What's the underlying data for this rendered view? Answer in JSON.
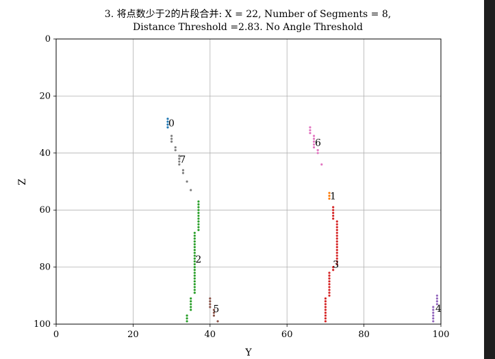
{
  "chart_data": {
    "type": "scatter",
    "title_lines": [
      "3. 将点数少于2的片段合并: X = 22, Number of Segments = 8,",
      "Distance Threshold =2.83. No Angle Threshold"
    ],
    "xlabel": "Y",
    "ylabel": "Z",
    "xlim": [
      0,
      100
    ],
    "ylim": [
      0,
      100
    ],
    "y_inverted": true,
    "grid": true,
    "xticks": [
      0,
      20,
      40,
      60,
      80,
      100
    ],
    "yticks": [
      0,
      20,
      40,
      60,
      80,
      100
    ],
    "series": [
      {
        "label": "0",
        "color": "#1f77b4",
        "points": [
          [
            29,
            28
          ],
          [
            29,
            29
          ],
          [
            29,
            30
          ],
          [
            29,
            31
          ]
        ]
      },
      {
        "label": "1",
        "color": "#ff7f0e",
        "points": [
          [
            71,
            54
          ],
          [
            71,
            55
          ],
          [
            71,
            56
          ]
        ]
      },
      {
        "label": "2",
        "color": "#2ca02c",
        "points": [
          [
            37,
            57
          ],
          [
            37,
            58
          ],
          [
            37,
            59
          ],
          [
            37,
            60
          ],
          [
            37,
            61
          ],
          [
            37,
            62
          ],
          [
            37,
            63
          ],
          [
            37,
            64
          ],
          [
            37,
            65
          ],
          [
            37,
            66
          ],
          [
            37,
            67
          ],
          [
            36,
            68
          ],
          [
            36,
            69
          ],
          [
            36,
            70
          ],
          [
            36,
            71
          ],
          [
            36,
            72
          ],
          [
            36,
            73
          ],
          [
            36,
            74
          ],
          [
            36,
            75
          ],
          [
            36,
            76
          ],
          [
            36,
            77
          ],
          [
            36,
            78
          ],
          [
            36,
            79
          ],
          [
            36,
            80
          ],
          [
            36,
            81
          ],
          [
            36,
            82
          ],
          [
            36,
            83
          ],
          [
            36,
            84
          ],
          [
            36,
            85
          ],
          [
            36,
            86
          ],
          [
            36,
            87
          ],
          [
            36,
            88
          ],
          [
            36,
            89
          ],
          [
            35,
            91
          ],
          [
            35,
            92
          ],
          [
            35,
            93
          ],
          [
            35,
            94
          ],
          [
            35,
            95
          ],
          [
            34,
            97
          ],
          [
            34,
            98
          ],
          [
            34,
            99
          ]
        ]
      },
      {
        "label": "3",
        "color": "#d62728",
        "points": [
          [
            72,
            59
          ],
          [
            72,
            60
          ],
          [
            72,
            61
          ],
          [
            72,
            62
          ],
          [
            72,
            63
          ],
          [
            73,
            64
          ],
          [
            73,
            65
          ],
          [
            73,
            66
          ],
          [
            73,
            67
          ],
          [
            73,
            68
          ],
          [
            73,
            69
          ],
          [
            73,
            70
          ],
          [
            73,
            71
          ],
          [
            73,
            72
          ],
          [
            73,
            73
          ],
          [
            73,
            74
          ],
          [
            73,
            75
          ],
          [
            73,
            76
          ],
          [
            73,
            77
          ],
          [
            73,
            78
          ],
          [
            73,
            79
          ],
          [
            72,
            80
          ],
          [
            72,
            81
          ],
          [
            71,
            82
          ],
          [
            71,
            83
          ],
          [
            71,
            84
          ],
          [
            71,
            85
          ],
          [
            71,
            86
          ],
          [
            71,
            87
          ],
          [
            71,
            88
          ],
          [
            71,
            89
          ],
          [
            71,
            90
          ],
          [
            70,
            91
          ],
          [
            70,
            92
          ],
          [
            70,
            93
          ],
          [
            70,
            94
          ],
          [
            70,
            95
          ],
          [
            70,
            96
          ],
          [
            70,
            97
          ],
          [
            70,
            98
          ],
          [
            70,
            99
          ]
        ]
      },
      {
        "label": "4",
        "color": "#9467bd",
        "points": [
          [
            99,
            90
          ],
          [
            99,
            91
          ],
          [
            99,
            92
          ],
          [
            99,
            93
          ],
          [
            98,
            94
          ],
          [
            98,
            95
          ],
          [
            98,
            96
          ],
          [
            98,
            97
          ],
          [
            98,
            98
          ],
          [
            98,
            99
          ]
        ]
      },
      {
        "label": "5",
        "color": "#8c564b",
        "points": [
          [
            40,
            91
          ],
          [
            40,
            92
          ],
          [
            40,
            93
          ],
          [
            40,
            94
          ],
          [
            41,
            95
          ],
          [
            41,
            96
          ],
          [
            41,
            97
          ],
          [
            42,
            99
          ]
        ]
      },
      {
        "label": "6",
        "color": "#e377c2",
        "points": [
          [
            66,
            31
          ],
          [
            66,
            32
          ],
          [
            66,
            33
          ],
          [
            67,
            34
          ],
          [
            67,
            35
          ],
          [
            67,
            36
          ],
          [
            67,
            37
          ],
          [
            67,
            38
          ],
          [
            68,
            39
          ],
          [
            68,
            40
          ],
          [
            69,
            44
          ]
        ]
      },
      {
        "label": "7",
        "color": "#7f7f7f",
        "points": [
          [
            30,
            34
          ],
          [
            30,
            35
          ],
          [
            30,
            36
          ],
          [
            31,
            38
          ],
          [
            31,
            39
          ],
          [
            32,
            41
          ],
          [
            32,
            42
          ],
          [
            32,
            43
          ],
          [
            32,
            44
          ],
          [
            33,
            46
          ],
          [
            33,
            47
          ],
          [
            34,
            50
          ],
          [
            35,
            53
          ]
        ]
      }
    ]
  }
}
